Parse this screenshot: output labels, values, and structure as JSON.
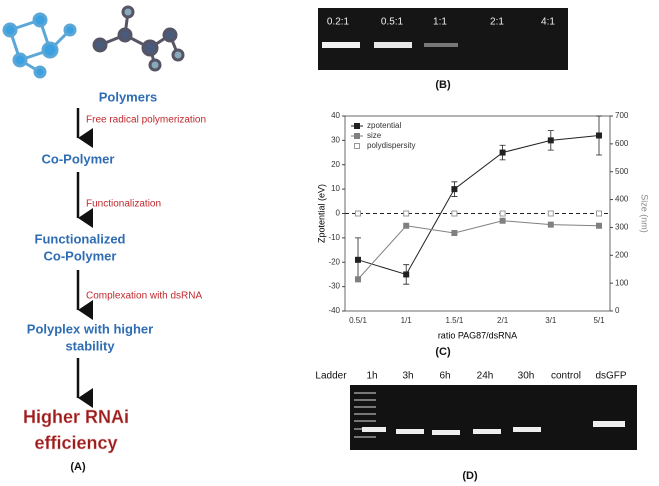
{
  "panel_a": {
    "steps": [
      "Polymers",
      "Co-Polymer",
      [
        "Functionalized",
        "Co-Polymer"
      ],
      [
        "Polyplex with higher",
        "stability"
      ]
    ],
    "processes": [
      "Free radical polymerization",
      "Functionalization",
      "Complexation with dsRNA"
    ],
    "result": [
      "Higher RNAi",
      "efficiency"
    ],
    "caption": "(A)"
  },
  "panel_b": {
    "lanes": [
      "0.2:1",
      "0.5:1",
      "1:1",
      "2:1",
      "4:1"
    ],
    "caption": "(B)"
  },
  "chart_data": {
    "type": "line",
    "caption": "(C)",
    "xlabel": "ratio PAG87/dsRNA",
    "ylabel": "Zpotential (eV)",
    "y2label": "Size (nm)",
    "categories": [
      "0.5/1",
      "1/1",
      "1.5/1",
      "2/1",
      "3/1",
      "5/1"
    ],
    "ylim": [
      -40,
      40
    ],
    "yticks": [
      -40,
      -30,
      -20,
      -10,
      0,
      10,
      20,
      30,
      40
    ],
    "y2lim": [
      0,
      700
    ],
    "y2ticks": [
      0,
      100,
      200,
      300,
      400,
      500,
      600,
      700
    ],
    "reference_line": 0,
    "legend": "upper-left",
    "series": [
      {
        "name": "zpotential",
        "color": "#222222",
        "filled": true,
        "values": [
          -19,
          -25,
          10,
          25,
          30,
          32
        ],
        "errors": [
          9,
          4,
          3,
          3,
          4,
          8
        ]
      },
      {
        "name": "size",
        "color": "#808080",
        "filled": true,
        "axis": "y2",
        "values": [
          114,
          306,
          280,
          324,
          310,
          306
        ]
      },
      {
        "name": "polydispersity",
        "color": "#999999",
        "filled": false,
        "values": [
          0,
          0,
          0,
          0,
          0,
          0
        ]
      }
    ]
  },
  "panel_d": {
    "lanes": [
      "Ladder",
      "1h",
      "3h",
      "6h",
      "24h",
      "30h",
      "control",
      "dsGFP"
    ],
    "caption": "(D)"
  }
}
